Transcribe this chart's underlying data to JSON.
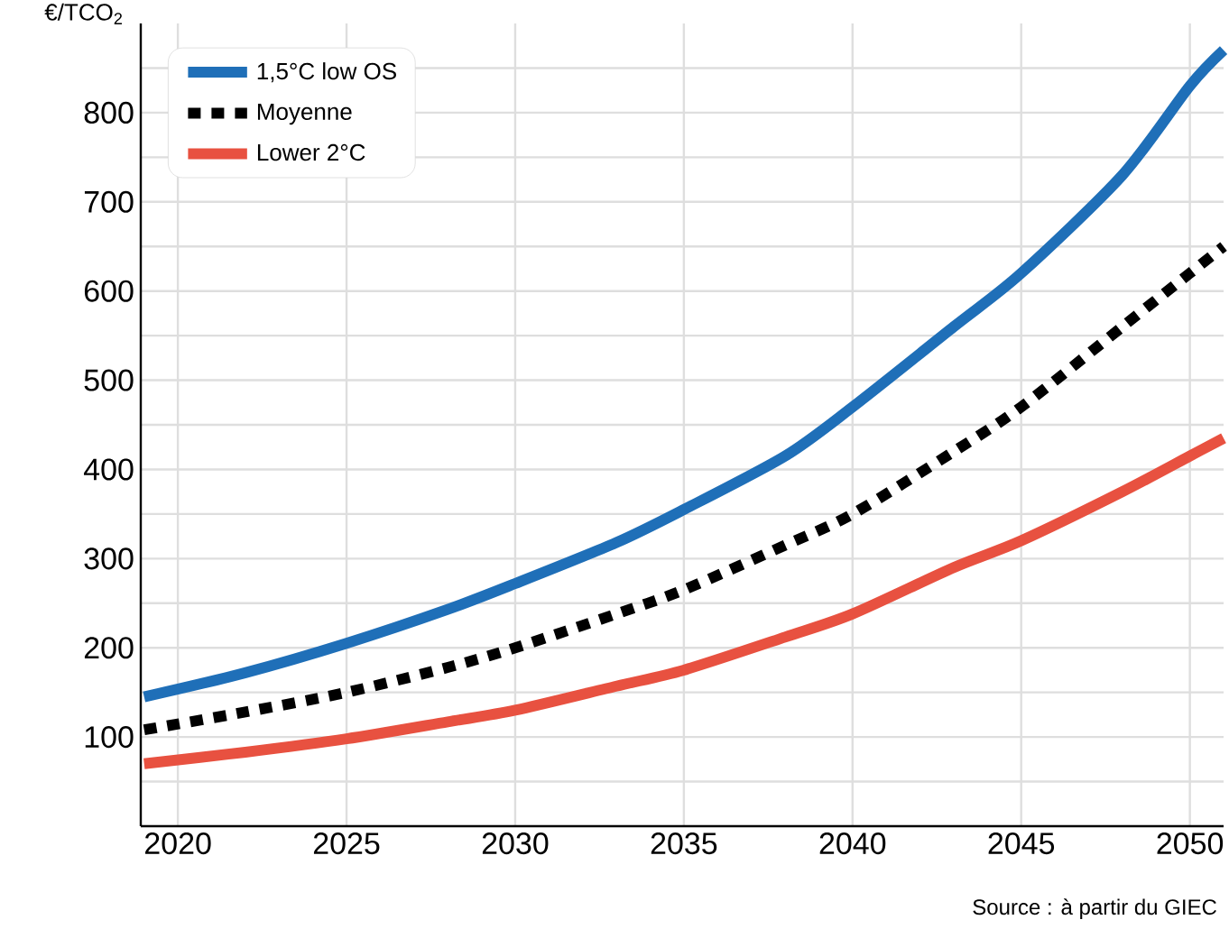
{
  "chart_data": {
    "type": "line",
    "ylabel": "€/TCO$_{2}$",
    "x": [
      2019,
      2022,
      2025,
      2028,
      2030,
      2033,
      2035,
      2038,
      2040,
      2043,
      2045,
      2048,
      2050,
      2051
    ],
    "series": [
      {
        "name": "1,5°C low OS",
        "color": "#1f6fb8",
        "line_style": "solid",
        "values": [
          145,
          172,
          205,
          243,
          272,
          318,
          355,
          415,
          470,
          560,
          620,
          730,
          830,
          870
        ]
      },
      {
        "name": "Moyenne",
        "color": "#000000",
        "line_style": "dotted",
        "values": [
          108,
          128,
          150,
          178,
          200,
          238,
          265,
          315,
          350,
          420,
          470,
          560,
          620,
          650
        ]
      },
      {
        "name": "Lower 2°C",
        "color": "#e85140",
        "line_style": "solid",
        "values": [
          70,
          83,
          98,
          117,
          130,
          157,
          175,
          212,
          238,
          290,
          320,
          375,
          415,
          435
        ]
      }
    ],
    "xlim": [
      2018.9,
      2051
    ],
    "ylim": [
      0,
      900
    ],
    "xticks": [
      2020,
      2025,
      2030,
      2035,
      2040,
      2045,
      2050
    ],
    "yticks": [
      {
        "value": 50,
        "label": null
      },
      100,
      {
        "value": 150,
        "label": null
      },
      200,
      {
        "value": 250,
        "label": null
      },
      300,
      {
        "value": 350,
        "label": null
      },
      400,
      {
        "value": 450,
        "label": null
      },
      500,
      {
        "value": 550,
        "label": null
      },
      600,
      {
        "value": 650,
        "label": null
      },
      700,
      {
        "value": 750,
        "label": null
      },
      800,
      {
        "value": 850,
        "label": null
      }
    ],
    "grid": true,
    "legend": "top left",
    "marker": "none",
    "annotations": [
      "Source : à partir du GIEC"
    ]
  }
}
